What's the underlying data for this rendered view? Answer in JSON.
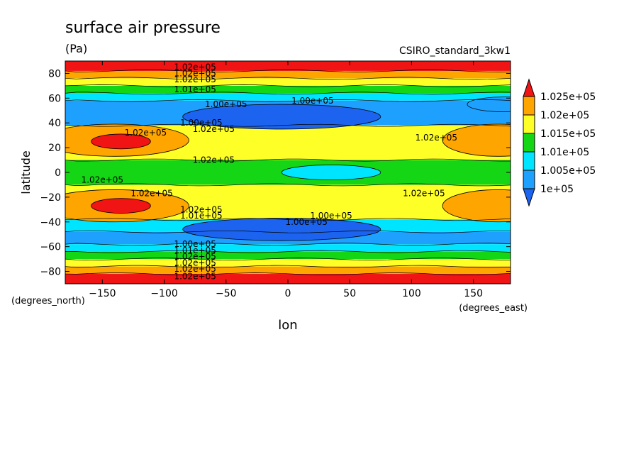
{
  "chart_data": {
    "type": "heatmap",
    "title": "surface air pressure",
    "units": "(Pa)",
    "model": "CSIRO_standard_3kw1",
    "xlabel": "lon",
    "ylabel": "latitude",
    "x_unit_label": "(degrees_east)",
    "y_unit_label": "(degrees_north)",
    "xlim": [
      -180,
      180
    ],
    "ylim": [
      -90,
      90
    ],
    "x_ticks": [
      -150,
      -100,
      -50,
      0,
      50,
      100,
      150
    ],
    "x_tick_labels": [
      "−150",
      "−100",
      "−50",
      "0",
      "50",
      "100",
      "150"
    ],
    "y_ticks": [
      80,
      60,
      40,
      20,
      0,
      -20,
      -40,
      -60,
      -80
    ],
    "y_tick_labels": [
      "80",
      "60",
      "40",
      "20",
      "0",
      "−20",
      "−40",
      "−60",
      "−80"
    ],
    "levels": [
      100000,
      100500,
      101000,
      101500,
      102000,
      102500
    ],
    "legend_labels": [
      "1.025e+05",
      "1.02e+05",
      "1.015e+05",
      "1.01e+05",
      "1.005e+05",
      "1e+05"
    ],
    "colors": {
      "below_100000": "#1c64f0",
      "100000_100500": "#1ea0ff",
      "100500_101000": "#00e5ff",
      "101000_101500": "#14d614",
      "101500_102000": "#ffff28",
      "102000_102500": "#ffa500",
      "above_102500": "#f01414"
    },
    "lat_bands": [
      {
        "lat_from": 90,
        "lat_to": 82,
        "value": 102700
      },
      {
        "lat_from": 82,
        "lat_to": 76,
        "value": 102200
      },
      {
        "lat_from": 76,
        "lat_to": 70,
        "value": 101700
      },
      {
        "lat_from": 70,
        "lat_to": 64,
        "value": 101200
      },
      {
        "lat_from": 64,
        "lat_to": 58,
        "value": 100700
      },
      {
        "lat_from": 58,
        "lat_to": 38,
        "value": 100200
      },
      {
        "lat_from": 38,
        "lat_to": 10,
        "value": 101700
      },
      {
        "lat_from": 10,
        "lat_to": -10,
        "value": 101200
      },
      {
        "lat_from": -10,
        "lat_to": -38,
        "value": 101700
      },
      {
        "lat_from": -38,
        "lat_to": -48,
        "value": 100700
      },
      {
        "lat_from": -48,
        "lat_to": -58,
        "value": 100200
      },
      {
        "lat_from": -58,
        "lat_to": -64,
        "value": 100700
      },
      {
        "lat_from": -64,
        "lat_to": -70,
        "value": 101200
      },
      {
        "lat_from": -70,
        "lat_to": -76,
        "value": 101700
      },
      {
        "lat_from": -76,
        "lat_to": -82,
        "value": 102200
      },
      {
        "lat_from": -82,
        "lat_to": -90,
        "value": 102700
      }
    ],
    "blobs": [
      {
        "name": "nh-subtropical-high-west",
        "lon": -140,
        "lat": 26,
        "rlon": 60,
        "rlat": 13,
        "value": 102200
      },
      {
        "name": "nh-subtropical-high-west-core",
        "lon": -135,
        "lat": 25,
        "rlon": 24,
        "rlat": 6,
        "value": 102700
      },
      {
        "name": "nh-subtropical-high-east",
        "lon": 170,
        "lat": 26,
        "rlon": 45,
        "rlat": 13,
        "value": 102200
      },
      {
        "name": "sh-subtropical-high-west",
        "lon": -140,
        "lat": -27,
        "rlon": 60,
        "rlat": 13,
        "value": 102200
      },
      {
        "name": "sh-subtropical-high-west-core",
        "lon": -135,
        "lat": -27,
        "rlon": 24,
        "rlat": 6,
        "value": 102700
      },
      {
        "name": "sh-subtropical-high-east",
        "lon": 170,
        "lat": -27,
        "rlon": 45,
        "rlat": 13,
        "value": 102200
      },
      {
        "name": "nh-midlat-trough",
        "lon": -5,
        "lat": 45,
        "rlon": 80,
        "rlat": 10,
        "value": 99800
      },
      {
        "name": "nh-midlat-trough-east",
        "lon": 175,
        "lat": 55,
        "rlon": 30,
        "rlat": 6,
        "value": 100200
      },
      {
        "name": "sh-midlat-trough",
        "lon": -5,
        "lat": -46,
        "rlon": 80,
        "rlat": 9,
        "value": 99800
      },
      {
        "name": "equatorial-low",
        "lon": 35,
        "lat": 0,
        "rlon": 40,
        "rlat": 6,
        "value": 100700
      }
    ],
    "contour_labels": [
      {
        "text": "1.02e+05",
        "lon": -75,
        "lat": 85
      },
      {
        "text": "1.02e+05",
        "lon": -75,
        "lat": 80
      },
      {
        "text": "1.02e+05",
        "lon": -75,
        "lat": 75
      },
      {
        "text": "1.01e+05",
        "lon": -75,
        "lat": 67
      },
      {
        "text": "1.00e+05",
        "lon": -50,
        "lat": 55
      },
      {
        "text": "1.00e+05",
        "lon": 20,
        "lat": 58
      },
      {
        "text": "1.00e+05",
        "lon": -70,
        "lat": 40
      },
      {
        "text": "1.02e+05",
        "lon": -60,
        "lat": 35
      },
      {
        "text": "1.02e+05",
        "lon": -115,
        "lat": 32
      },
      {
        "text": "1.02e+05",
        "lon": 120,
        "lat": 28
      },
      {
        "text": "1.02e+05",
        "lon": -60,
        "lat": 10
      },
      {
        "text": "1.02e+05",
        "lon": -150,
        "lat": -6
      },
      {
        "text": "1.02e+05",
        "lon": -110,
        "lat": -17
      },
      {
        "text": "1.02e+05",
        "lon": 110,
        "lat": -17
      },
      {
        "text": "1.02e+05",
        "lon": -70,
        "lat": -30
      },
      {
        "text": "1.01e+05",
        "lon": -70,
        "lat": -35
      },
      {
        "text": "1.00e+05",
        "lon": 35,
        "lat": -35
      },
      {
        "text": "1.00e+05",
        "lon": 15,
        "lat": -40
      },
      {
        "text": "1.00e+05",
        "lon": -75,
        "lat": -58
      },
      {
        "text": "1.01e+05",
        "lon": -75,
        "lat": -63
      },
      {
        "text": "1.02e+05",
        "lon": -75,
        "lat": -68
      },
      {
        "text": "1.02e+05",
        "lon": -75,
        "lat": -73
      },
      {
        "text": "1.02e+05",
        "lon": -75,
        "lat": -78
      },
      {
        "text": "1.02e+05",
        "lon": -75,
        "lat": -84
      }
    ]
  }
}
